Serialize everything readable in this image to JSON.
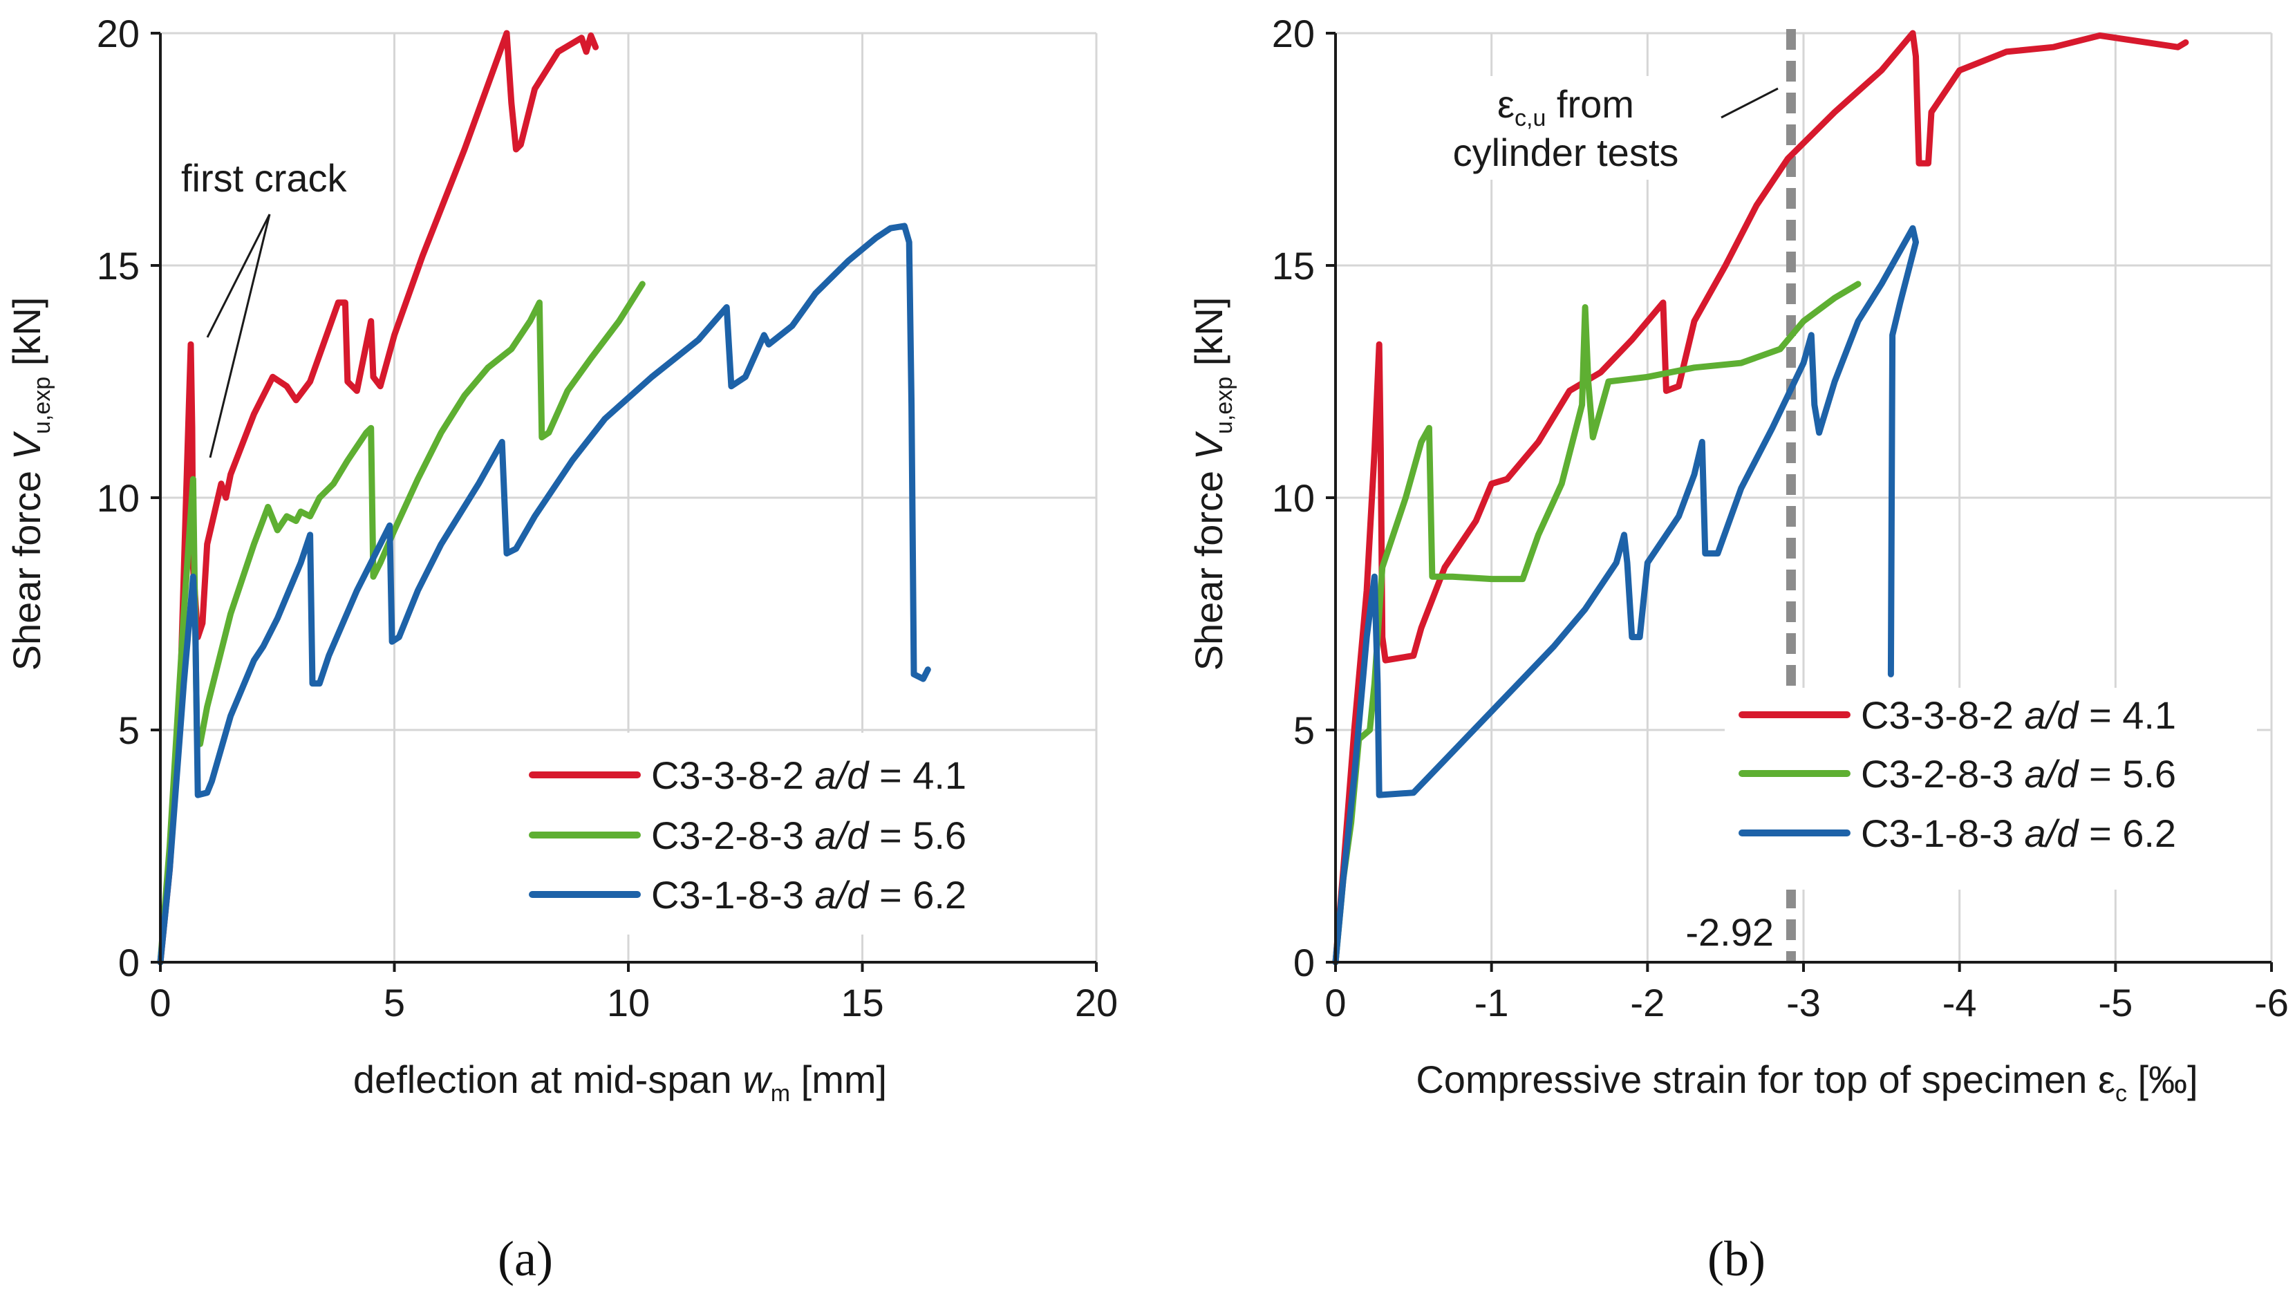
{
  "chart_data": [
    {
      "type": "line",
      "panel_label": "(a)",
      "ylabel_main": "Shear force ",
      "ylabel_var": "V",
      "ylabel_sub": "u,exp",
      "ylabel_unit": " [kN]",
      "xlabel_main": "deflection at mid-span ",
      "xlabel_var": "w",
      "xlabel_sub": "m",
      "xlabel_unit": " [mm]",
      "xlim": [
        0,
        20
      ],
      "ylim": [
        0,
        20
      ],
      "xticks": [
        0,
        5,
        10,
        15,
        20
      ],
      "yticks": [
        0,
        5,
        10,
        15,
        20
      ],
      "xtick_labels": [
        "0",
        "5",
        "10",
        "15",
        "20"
      ],
      "ytick_labels": [
        "0",
        "5",
        "10",
        "15",
        "20"
      ],
      "grid": true,
      "legend_position": "bottom-right",
      "annotations": [
        {
          "text": "first crack",
          "points_to": [
            [
              0.65,
              13.3
            ],
            [
              0.9,
              10.3
            ]
          ]
        }
      ],
      "series": [
        {
          "name": "C3-3-8-2",
          "ratio_label": " a/d = 4.1",
          "ratio_var": "a/d",
          "ratio_value": "4.1",
          "color": "#d7192d",
          "points": [
            [
              0,
              0
            ],
            [
              0.2,
              2
            ],
            [
              0.4,
              5
            ],
            [
              0.55,
              10
            ],
            [
              0.65,
              13.3
            ],
            [
              0.68,
              11.5
            ],
            [
              0.7,
              8.5
            ],
            [
              0.8,
              7
            ],
            [
              0.9,
              7.3
            ],
            [
              1.0,
              9
            ],
            [
              1.3,
              10.3
            ],
            [
              1.4,
              10
            ],
            [
              1.5,
              10.5
            ],
            [
              2.0,
              11.8
            ],
            [
              2.4,
              12.6
            ],
            [
              2.7,
              12.4
            ],
            [
              2.9,
              12.1
            ],
            [
              3.2,
              12.5
            ],
            [
              3.8,
              14.2
            ],
            [
              3.95,
              14.2
            ],
            [
              4.0,
              12.5
            ],
            [
              4.2,
              12.3
            ],
            [
              4.5,
              13.8
            ],
            [
              4.55,
              12.6
            ],
            [
              4.7,
              12.4
            ],
            [
              5.0,
              13.5
            ],
            [
              5.6,
              15.2
            ],
            [
              6.5,
              17.5
            ],
            [
              7.4,
              20
            ],
            [
              7.5,
              18.5
            ],
            [
              7.6,
              17.5
            ],
            [
              7.7,
              17.6
            ],
            [
              8.0,
              18.8
            ],
            [
              8.5,
              19.6
            ],
            [
              9.0,
              19.9
            ],
            [
              9.1,
              19.6
            ],
            [
              9.2,
              19.95
            ],
            [
              9.3,
              19.7
            ]
          ]
        },
        {
          "name": "C3-2-8-3",
          "ratio_label": " a/d = 5.6",
          "ratio_var": "a/d",
          "ratio_value": "5.6",
          "color": "#5eaf32",
          "points": [
            [
              0,
              0
            ],
            [
              0.2,
              2.5
            ],
            [
              0.5,
              7.5
            ],
            [
              0.7,
              10.4
            ],
            [
              0.72,
              9
            ],
            [
              0.78,
              5
            ],
            [
              0.85,
              4.7
            ],
            [
              1.0,
              5.5
            ],
            [
              1.5,
              7.5
            ],
            [
              2.0,
              9
            ],
            [
              2.3,
              9.8
            ],
            [
              2.5,
              9.3
            ],
            [
              2.7,
              9.6
            ],
            [
              2.9,
              9.5
            ],
            [
              3.0,
              9.7
            ],
            [
              3.2,
              9.6
            ],
            [
              3.4,
              10
            ],
            [
              3.7,
              10.3
            ],
            [
              4.0,
              10.8
            ],
            [
              4.4,
              11.4
            ],
            [
              4.5,
              11.5
            ],
            [
              4.55,
              8.3
            ],
            [
              4.7,
              8.6
            ],
            [
              5.0,
              9.3
            ],
            [
              5.5,
              10.4
            ],
            [
              6.0,
              11.4
            ],
            [
              6.5,
              12.2
            ],
            [
              7.0,
              12.8
            ],
            [
              7.5,
              13.2
            ],
            [
              7.9,
              13.8
            ],
            [
              8.1,
              14.2
            ],
            [
              8.15,
              11.3
            ],
            [
              8.3,
              11.4
            ],
            [
              8.7,
              12.3
            ],
            [
              9.2,
              13.0
            ],
            [
              9.8,
              13.8
            ],
            [
              10.3,
              14.6
            ]
          ]
        },
        {
          "name": "C3-1-8-3",
          "ratio_label": " a/d = 6.2",
          "ratio_var": "a/d",
          "ratio_value": "6.2",
          "color": "#1d62a8",
          "points": [
            [
              0,
              0
            ],
            [
              0.2,
              2
            ],
            [
              0.5,
              6
            ],
            [
              0.7,
              8.3
            ],
            [
              0.75,
              7
            ],
            [
              0.8,
              3.6
            ],
            [
              1.0,
              3.65
            ],
            [
              1.1,
              3.9
            ],
            [
              1.5,
              5.3
            ],
            [
              2.0,
              6.5
            ],
            [
              2.2,
              6.8
            ],
            [
              2.5,
              7.4
            ],
            [
              3.0,
              8.6
            ],
            [
              3.2,
              9.2
            ],
            [
              3.25,
              6.0
            ],
            [
              3.4,
              6.0
            ],
            [
              3.6,
              6.6
            ],
            [
              4.2,
              8.0
            ],
            [
              4.6,
              8.8
            ],
            [
              4.9,
              9.4
            ],
            [
              4.95,
              6.9
            ],
            [
              5.1,
              7.0
            ],
            [
              5.5,
              8.0
            ],
            [
              6.0,
              9.0
            ],
            [
              6.8,
              10.3
            ],
            [
              7.3,
              11.2
            ],
            [
              7.4,
              8.8
            ],
            [
              7.6,
              8.9
            ],
            [
              8.0,
              9.6
            ],
            [
              8.8,
              10.8
            ],
            [
              9.5,
              11.7
            ],
            [
              10.5,
              12.6
            ],
            [
              11.5,
              13.4
            ],
            [
              12.1,
              14.1
            ],
            [
              12.2,
              12.4
            ],
            [
              12.5,
              12.6
            ],
            [
              12.9,
              13.5
            ],
            [
              13.0,
              13.3
            ],
            [
              13.5,
              13.7
            ],
            [
              14.0,
              14.4
            ],
            [
              14.7,
              15.1
            ],
            [
              15.3,
              15.6
            ],
            [
              15.6,
              15.8
            ],
            [
              15.9,
              15.85
            ],
            [
              16.0,
              15.5
            ],
            [
              16.05,
              12.0
            ],
            [
              16.1,
              6.2
            ],
            [
              16.3,
              6.1
            ],
            [
              16.4,
              6.3
            ]
          ]
        }
      ]
    },
    {
      "type": "line",
      "panel_label": "(b)",
      "ylabel_main": "Shear force ",
      "ylabel_var": "V",
      "ylabel_sub": "u,exp",
      "ylabel_unit": " [kN]",
      "xlabel_main": "Compressive strain for top of specimen ε",
      "xlabel_sub": "c",
      "xlabel_unit": " [‰]",
      "xlim": [
        0,
        -6
      ],
      "ylim": [
        0,
        20
      ],
      "xticks": [
        0,
        -1,
        -2,
        -3,
        -4,
        -5,
        -6
      ],
      "yticks": [
        0,
        5,
        10,
        15,
        20
      ],
      "xtick_labels": [
        "0",
        "-1",
        "-2",
        "-3",
        "-4",
        "-5",
        "-6"
      ],
      "ytick_labels": [
        "0",
        "5",
        "10",
        "15",
        "20"
      ],
      "grid": true,
      "legend_position": "bottom-right",
      "reference_line": {
        "x": -2.92,
        "label": "-2.92",
        "color": "#8c8c8c"
      },
      "annotations": [
        {
          "text_line1_main": "ε",
          "text_line1_sub": "c,u",
          "text_line1_rest": " from",
          "text_line2": "cylinder tests"
        }
      ],
      "series": [
        {
          "name": "C3-3-8-2",
          "ratio_label": " a/d = 4.1",
          "ratio_var": "a/d",
          "ratio_value": "4.1",
          "color": "#d7192d",
          "points": [
            [
              0,
              0
            ],
            [
              -0.05,
              2
            ],
            [
              -0.12,
              5
            ],
            [
              -0.2,
              8
            ],
            [
              -0.25,
              11
            ],
            [
              -0.28,
              13.3
            ],
            [
              -0.29,
              11
            ],
            [
              -0.3,
              7
            ],
            [
              -0.32,
              6.5
            ],
            [
              -0.5,
              6.6
            ],
            [
              -0.55,
              7.2
            ],
            [
              -0.7,
              8.5
            ],
            [
              -0.9,
              9.5
            ],
            [
              -1.0,
              10.3
            ],
            [
              -1.1,
              10.4
            ],
            [
              -1.3,
              11.2
            ],
            [
              -1.5,
              12.3
            ],
            [
              -1.7,
              12.7
            ],
            [
              -1.9,
              13.4
            ],
            [
              -2.1,
              14.2
            ],
            [
              -2.12,
              12.3
            ],
            [
              -2.2,
              12.4
            ],
            [
              -2.3,
              13.8
            ],
            [
              -2.5,
              15.0
            ],
            [
              -2.7,
              16.3
            ],
            [
              -2.9,
              17.3
            ],
            [
              -3.2,
              18.3
            ],
            [
              -3.5,
              19.2
            ],
            [
              -3.7,
              20
            ],
            [
              -3.72,
              19.5
            ],
            [
              -3.74,
              17.2
            ],
            [
              -3.8,
              17.2
            ],
            [
              -3.82,
              18.3
            ],
            [
              -4.0,
              19.2
            ],
            [
              -4.3,
              19.6
            ],
            [
              -4.6,
              19.7
            ],
            [
              -4.9,
              19.95
            ],
            [
              -5.2,
              19.8
            ],
            [
              -5.4,
              19.7
            ],
            [
              -5.45,
              19.8
            ]
          ]
        },
        {
          "name": "C3-2-8-3",
          "ratio_label": " a/d = 5.6",
          "ratio_var": "a/d",
          "ratio_value": "5.6",
          "color": "#5eaf32",
          "points": [
            [
              0,
              0
            ],
            [
              -0.05,
              1.8
            ],
            [
              -0.1,
              3
            ],
            [
              -0.15,
              4.8
            ],
            [
              -0.22,
              5
            ],
            [
              -0.25,
              6
            ],
            [
              -0.3,
              8.5
            ],
            [
              -0.45,
              10
            ],
            [
              -0.55,
              11.2
            ],
            [
              -0.6,
              11.5
            ],
            [
              -0.62,
              8.3
            ],
            [
              -0.75,
              8.3
            ],
            [
              -1.0,
              8.25
            ],
            [
              -1.2,
              8.25
            ],
            [
              -1.3,
              9.2
            ],
            [
              -1.45,
              10.3
            ],
            [
              -1.58,
              12.0
            ],
            [
              -1.6,
              14.1
            ],
            [
              -1.62,
              12.5
            ],
            [
              -1.65,
              11.3
            ],
            [
              -1.75,
              12.5
            ],
            [
              -2.0,
              12.6
            ],
            [
              -2.3,
              12.8
            ],
            [
              -2.6,
              12.9
            ],
            [
              -2.85,
              13.2
            ],
            [
              -3.0,
              13.8
            ],
            [
              -3.2,
              14.3
            ],
            [
              -3.35,
              14.6
            ]
          ]
        },
        {
          "name": "C3-1-8-3",
          "ratio_label": " a/d = 6.2",
          "ratio_var": "a/d",
          "ratio_value": "6.2",
          "color": "#1d62a8",
          "points": [
            [
              0,
              0
            ],
            [
              -0.05,
              1.8
            ],
            [
              -0.12,
              4
            ],
            [
              -0.2,
              7
            ],
            [
              -0.25,
              8.3
            ],
            [
              -0.27,
              6
            ],
            [
              -0.28,
              3.6
            ],
            [
              -0.5,
              3.65
            ],
            [
              -0.6,
              4.0
            ],
            [
              -0.8,
              4.7
            ],
            [
              -1.0,
              5.4
            ],
            [
              -1.2,
              6.1
            ],
            [
              -1.4,
              6.8
            ],
            [
              -1.6,
              7.6
            ],
            [
              -1.8,
              8.6
            ],
            [
              -1.85,
              9.2
            ],
            [
              -1.87,
              8.6
            ],
            [
              -1.9,
              7.0
            ],
            [
              -1.95,
              7.0
            ],
            [
              -2.0,
              8.6
            ],
            [
              -2.2,
              9.6
            ],
            [
              -2.3,
              10.5
            ],
            [
              -2.35,
              11.2
            ],
            [
              -2.37,
              8.8
            ],
            [
              -2.45,
              8.8
            ],
            [
              -2.6,
              10.2
            ],
            [
              -2.8,
              11.5
            ],
            [
              -3.0,
              12.9
            ],
            [
              -3.05,
              13.5
            ],
            [
              -3.07,
              12.0
            ],
            [
              -3.1,
              11.4
            ],
            [
              -3.2,
              12.5
            ],
            [
              -3.35,
              13.8
            ],
            [
              -3.5,
              14.6
            ],
            [
              -3.6,
              15.2
            ],
            [
              -3.7,
              15.8
            ],
            [
              -3.72,
              15.5
            ],
            [
              -3.62,
              14.2
            ],
            [
              -3.57,
              13.5
            ],
            [
              -3.56,
              6.2
            ]
          ]
        }
      ]
    }
  ]
}
